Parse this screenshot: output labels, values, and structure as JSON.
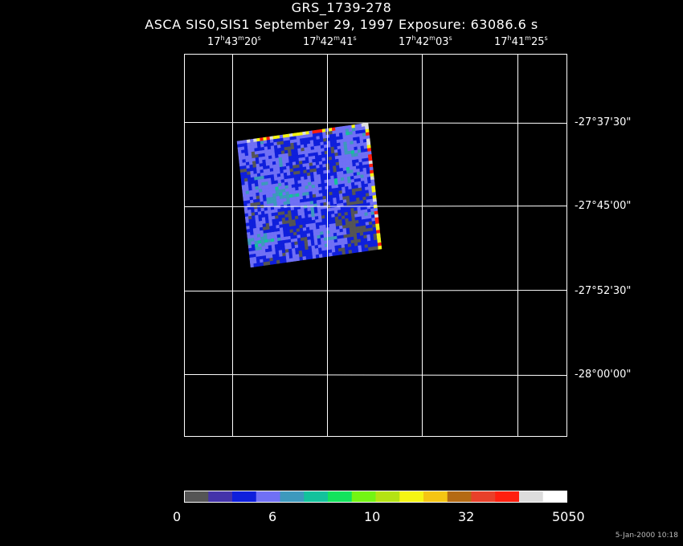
{
  "header": {
    "title": "GRS_1739-278",
    "subtitle": "ASCA SIS0,SIS1 September 29, 1997 Exposure: 63086.6 s"
  },
  "ra_axis": {
    "labels": [
      {
        "h": "17",
        "m": "43",
        "s": "20"
      },
      {
        "h": "17",
        "m": "42",
        "s": "41"
      },
      {
        "h": "17",
        "m": "42",
        "s": "03"
      },
      {
        "h": "17",
        "m": "41",
        "s": "25"
      }
    ]
  },
  "dec_axis": {
    "labels": [
      "-27°37'30\"",
      "-27°45'00\"",
      "-27°52'30\"",
      "-28°00'00\""
    ]
  },
  "colorbar": {
    "colors": [
      "#555555",
      "#4433aa",
      "#0f1fdc",
      "#7070f5",
      "#3d99bd",
      "#13c29c",
      "#13e35c",
      "#73f513",
      "#b4e313",
      "#f5f513",
      "#f5c513",
      "#b46a13",
      "#e8402a",
      "#ff1f0f",
      "#dddddd",
      "#ffffff"
    ],
    "ticks": [
      "0",
      "6",
      "10",
      "32",
      "5050"
    ]
  },
  "footer": {
    "timestamp": "5-Jan-2000 10:18"
  }
}
